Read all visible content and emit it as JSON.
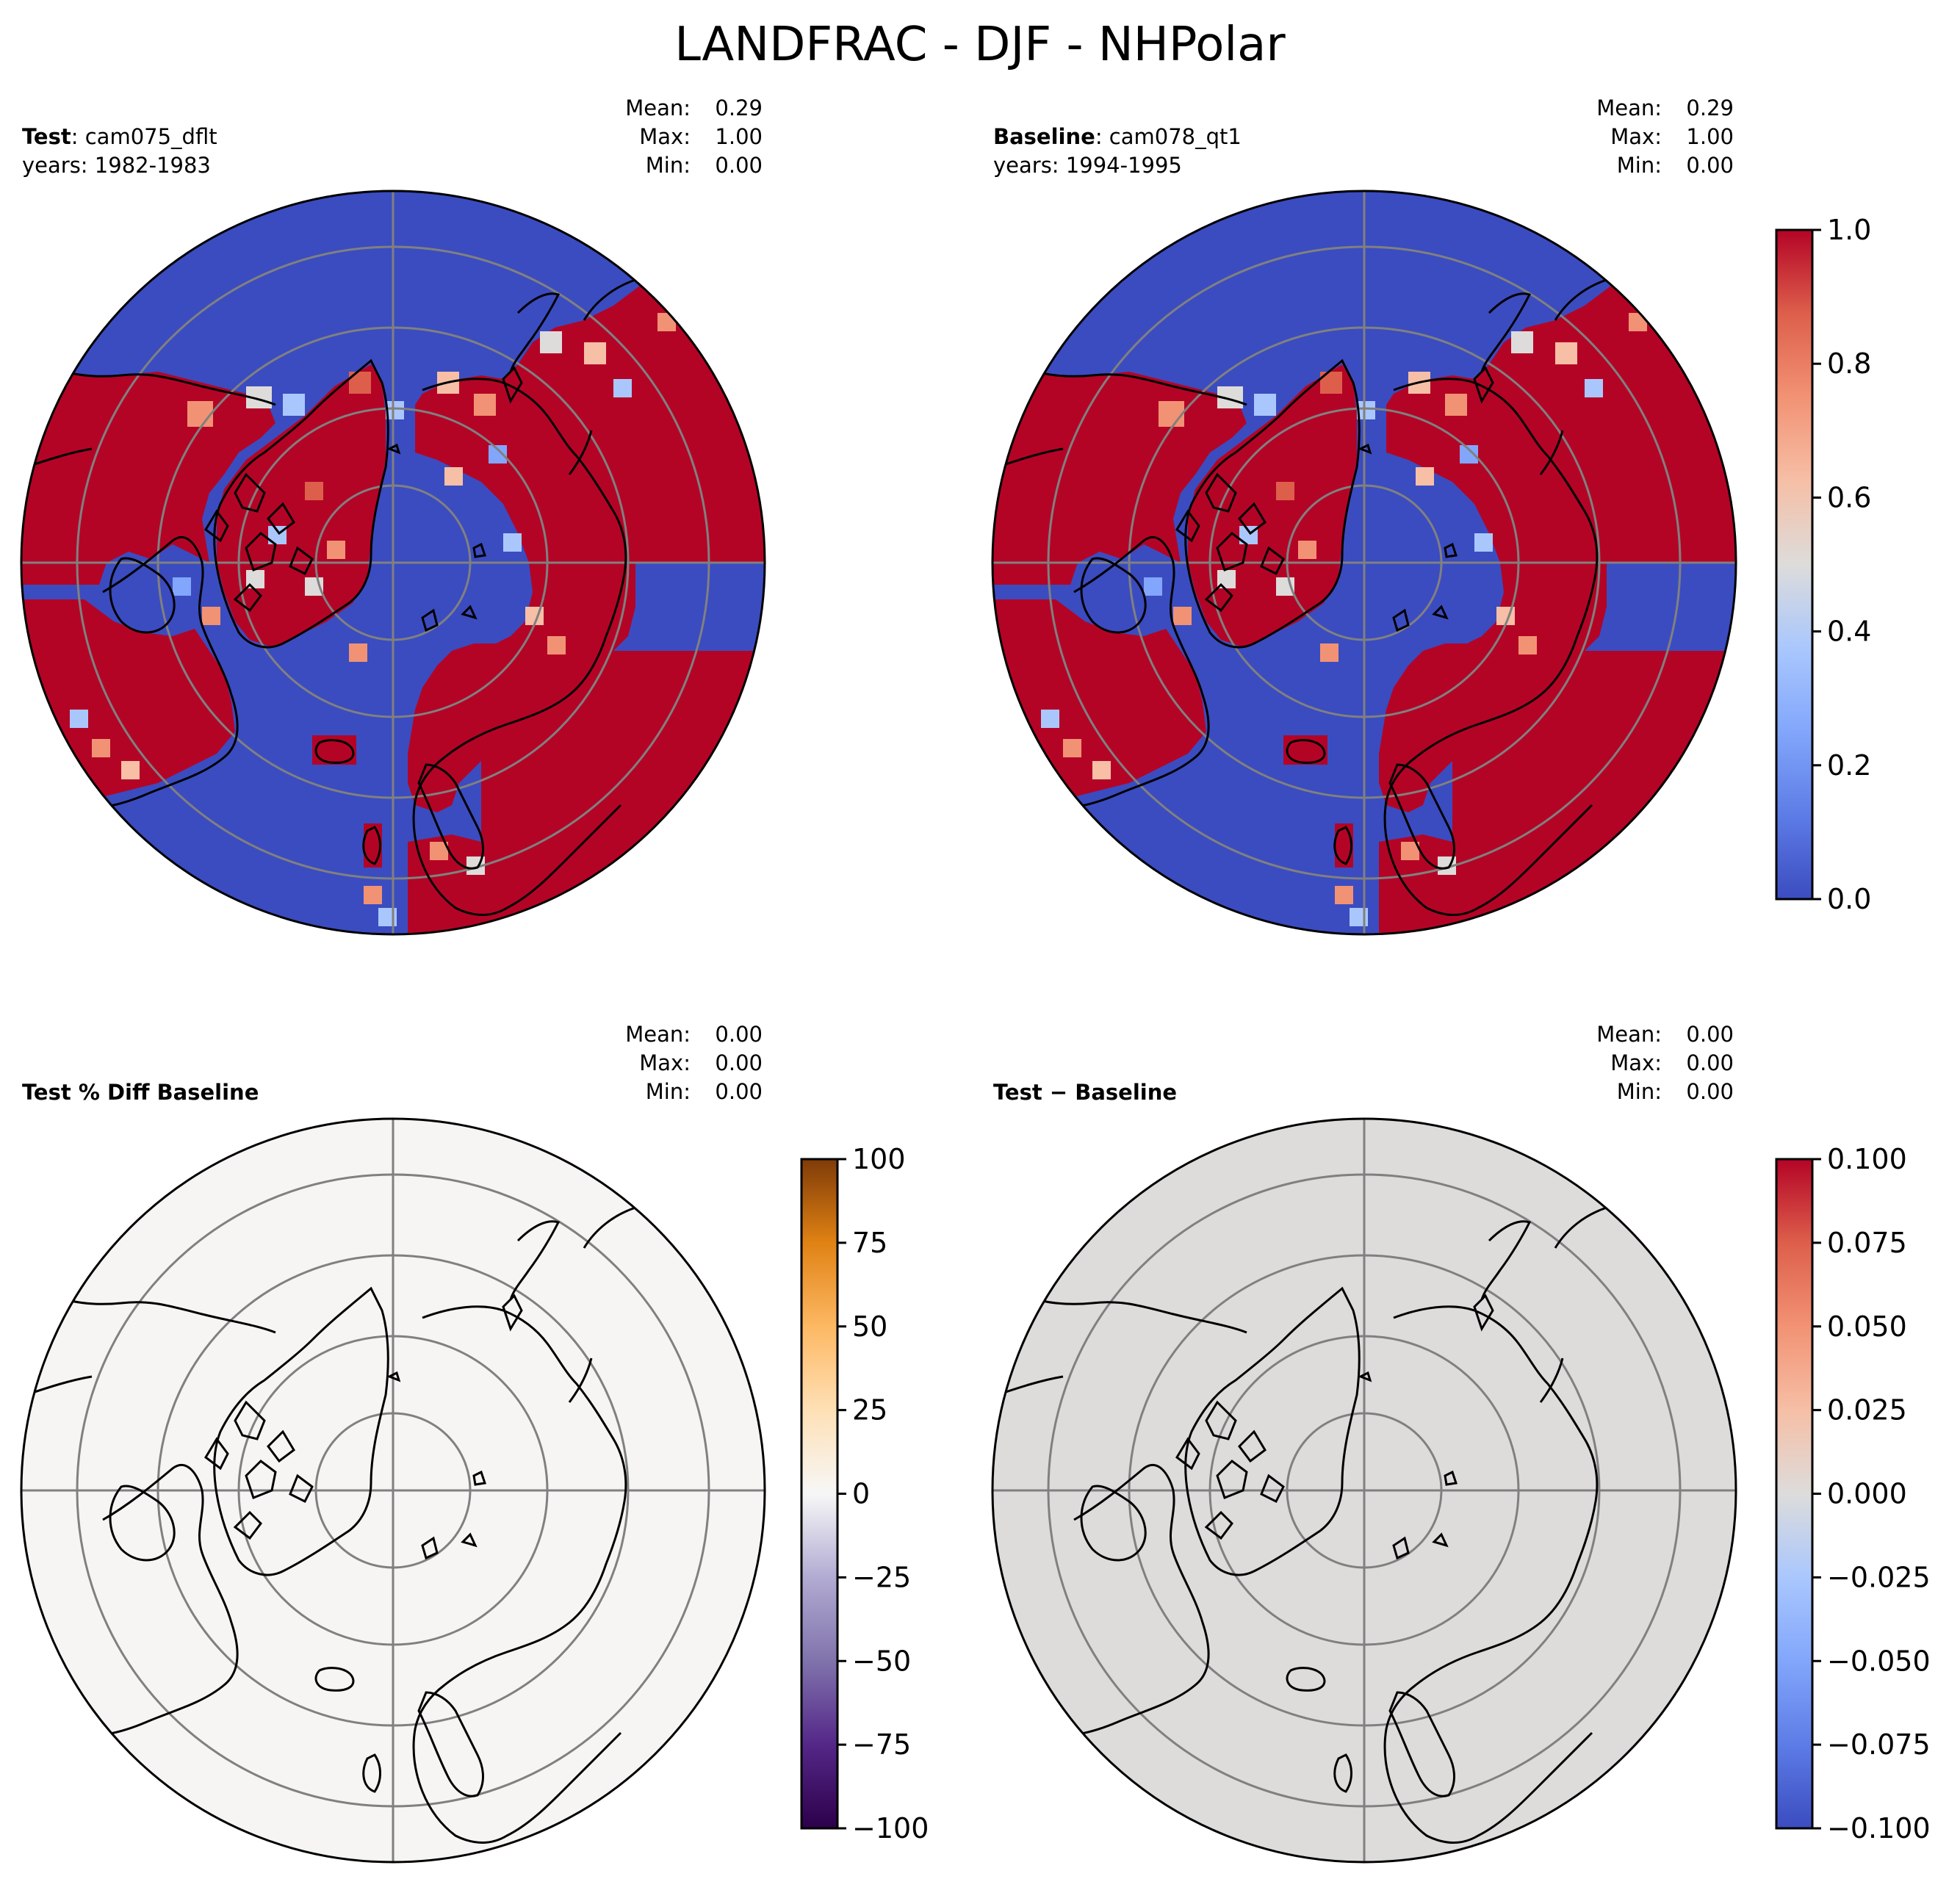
{
  "figure": {
    "title": "LANDFRAC - DJF - NHPolar"
  },
  "panels": [
    {
      "id": "test",
      "label_bold": "Test",
      "label_rest": ": cam075_dflt",
      "years": "years: 1982-1983",
      "stats": {
        "mean_label": "Mean:",
        "mean": "0.29",
        "max_label": "Max:",
        "max": "1.00",
        "min_label": "Min:",
        "min": "0.00"
      },
      "field": "landfrac",
      "background": "#3b4cc0"
    },
    {
      "id": "baseline",
      "label_bold": "Baseline",
      "label_rest": ": cam078_qt1",
      "years": "years: 1994-1995",
      "stats": {
        "mean_label": "Mean:",
        "mean": "0.29",
        "max_label": "Max:",
        "max": "1.00",
        "min_label": "Min:",
        "min": "0.00"
      },
      "field": "landfrac",
      "background": "#3b4cc0"
    },
    {
      "id": "pctdiff",
      "label_bold": "Test % Diff Baseline",
      "label_rest": "",
      "years": "",
      "stats": {
        "mean_label": "Mean:",
        "mean": "0.00",
        "max_label": "Max:",
        "max": "0.00",
        "min_label": "Min:",
        "min": "0.00"
      },
      "field": "zero",
      "background": "#f6f5f3"
    },
    {
      "id": "diff",
      "label_bold": "Test",
      "label_rest": " − Baseline",
      "label_rest_bold": true,
      "years": "",
      "stats": {
        "mean_label": "Mean:",
        "mean": "0.00",
        "max_label": "Max:",
        "max": "0.00",
        "min_label": "Min:",
        "min": "0.00"
      },
      "field": "zero",
      "background": "#dddcdb"
    }
  ],
  "colorbars": [
    {
      "id": "cb-landfrac",
      "colormap": "coolwarm",
      "min": 0.0,
      "max": 1.0,
      "ticks": [
        "0.0",
        "0.2",
        "0.4",
        "0.6",
        "0.8",
        "1.0"
      ]
    },
    {
      "id": "cb-pctdiff",
      "colormap": "PuOr_r",
      "min": -100,
      "max": 100,
      "ticks": [
        "−100",
        "−75",
        "−50",
        "−25",
        "0",
        "25",
        "50",
        "75",
        "100"
      ]
    },
    {
      "id": "cb-diff",
      "colormap": "coolwarm",
      "min": -0.1,
      "max": 0.1,
      "ticks": [
        "−0.100",
        "−0.075",
        "−0.050",
        "−0.025",
        "0.000",
        "0.025",
        "0.050",
        "0.075",
        "0.100"
      ]
    }
  ],
  "colors": {
    "ocean_blue": "#3b4cc0",
    "land_red": "#b40426",
    "grid_gray": "#808080",
    "coast": "#000000"
  }
}
